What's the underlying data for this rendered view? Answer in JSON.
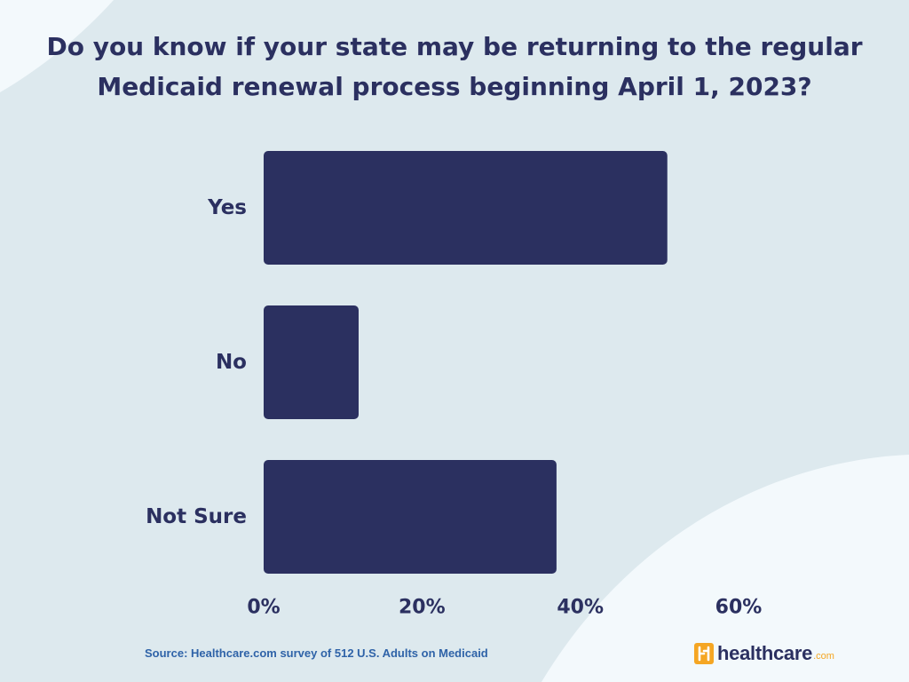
{
  "title_lines": [
    "Do you know if your state may be returning to the regular",
    "Medicaid renewal process beginning April 1, 2023?"
  ],
  "source": "Source: Healthcare.com survey of 512 U.S. Adults on Medicaid",
  "logo": {
    "text": "healthcare",
    "suffix": ".com"
  },
  "colors": {
    "bar": "#2b3060",
    "text": "#2b3060",
    "background": "#dde9ee",
    "wave": "#f3f9fc",
    "logo_orange": "#f5a623"
  },
  "chart_data": {
    "type": "bar",
    "orientation": "horizontal",
    "title": "Do you know if your state may be returning to the regular Medicaid renewal process beginning April 1, 2023?",
    "categories": [
      "Yes",
      "No",
      "Not Sure"
    ],
    "values": [
      51,
      12,
      37
    ],
    "unit": "%",
    "xlim": [
      0,
      60
    ],
    "xticks": [
      "0%",
      "20%",
      "40%",
      "60%"
    ],
    "grid": false,
    "legend": "none"
  }
}
